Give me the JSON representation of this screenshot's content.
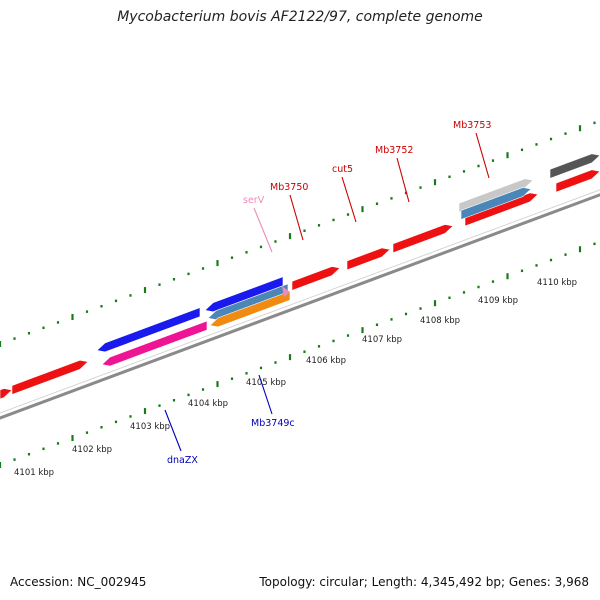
{
  "title": "Mycobacterium bovis AF2122/97, complete genome",
  "footer": {
    "accession": "Accession: NC_002945",
    "summary": "Topology: circular; Length: 4,345,492 bp; Genes: 3,968"
  },
  "colors": {
    "backbone": "#8a8a8a",
    "tick": "#1a7a1a",
    "forward_gene": "#ee1111",
    "reverse_gene": "#1a1aee",
    "pink_gene": "#ee1493",
    "grey_gene": "#c8c8c8",
    "dark_gene": "#555555",
    "steel_gene": "#4a86b8",
    "orange_gene": "#f08a10",
    "forward_label": "#cc0000",
    "reverse_label": "#0000bb",
    "trna_label": "#f08ab8"
  },
  "kbp_labels": [
    "4101 kbp",
    "4102 kbp",
    "4103 kbp",
    "4104 kbp",
    "4105 kbp",
    "4106 kbp",
    "4107 kbp",
    "4108 kbp",
    "4109 kbp",
    "4110 kbp"
  ],
  "gene_labels": [
    {
      "text": "serV",
      "color_key": "trna_label"
    },
    {
      "text": "Mb3750",
      "color_key": "forward_label"
    },
    {
      "text": "cut5",
      "color_key": "forward_label"
    },
    {
      "text": "Mb3752",
      "color_key": "forward_label"
    },
    {
      "text": "Mb3753",
      "color_key": "forward_label"
    },
    {
      "text": "dnaZX",
      "color_key": "reverse_label"
    },
    {
      "text": "Mb3749c",
      "color_key": "reverse_label"
    }
  ]
}
